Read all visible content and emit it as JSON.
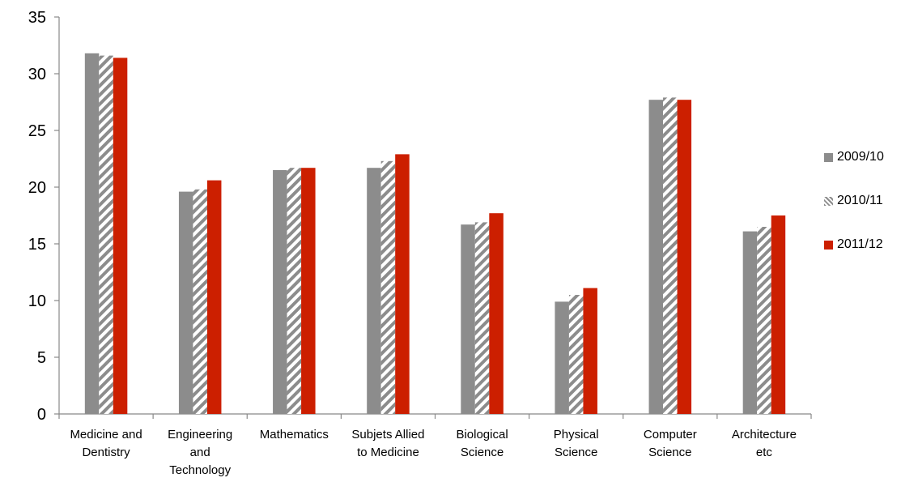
{
  "chart_data": {
    "type": "bar",
    "categories": [
      [
        "Medicine and",
        "Dentistry"
      ],
      [
        "Engineering",
        "and",
        "Technology"
      ],
      [
        "Mathematics"
      ],
      [
        "Subjets Allied",
        "to Medicine"
      ],
      [
        "Biological",
        "Science"
      ],
      [
        "Physical",
        "Science"
      ],
      [
        "Computer",
        "Science"
      ],
      [
        "Architecture",
        "etc"
      ]
    ],
    "series": [
      {
        "name": "2009/10",
        "values": [
          31.8,
          19.6,
          21.5,
          21.7,
          16.7,
          9.9,
          27.7,
          16.1
        ],
        "color": "#8c8c8c",
        "pattern": "solid"
      },
      {
        "name": "2010/11",
        "values": [
          31.6,
          19.8,
          21.7,
          22.3,
          16.9,
          10.5,
          27.9,
          16.5
        ],
        "color": "#8c8c8c",
        "pattern": "diagonal-stripes"
      },
      {
        "name": "2011/12",
        "values": [
          31.4,
          20.6,
          21.7,
          22.9,
          17.7,
          11.1,
          27.7,
          17.5
        ],
        "color": "#cc1f00",
        "pattern": "solid"
      }
    ],
    "ylim": [
      0,
      35
    ],
    "yticks": [
      0,
      5,
      10,
      15,
      20,
      25,
      30,
      35
    ],
    "grid": false,
    "legend_position": "right",
    "title": "",
    "xlabel": "",
    "ylabel": ""
  }
}
